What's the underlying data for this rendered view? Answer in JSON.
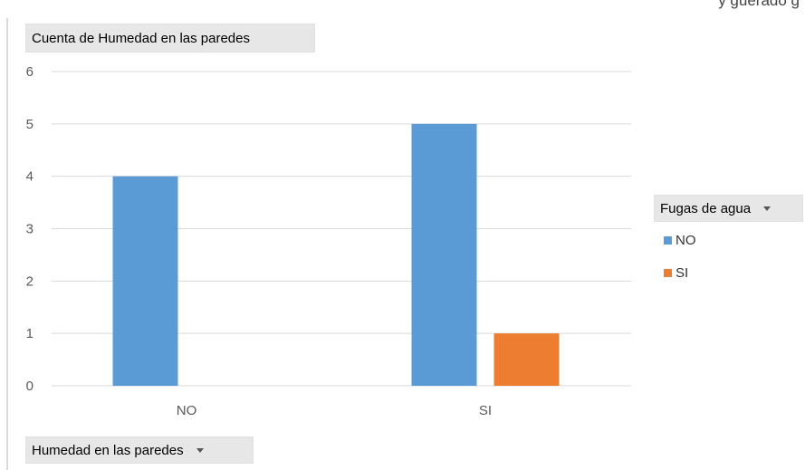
{
  "window": {
    "cut_top_text": "y güerado g"
  },
  "chart_data": {
    "type": "bar",
    "title": "Cuenta de Humedad en las paredes",
    "categories": [
      "NO",
      "SI"
    ],
    "series": [
      {
        "name": "NO",
        "values": [
          4,
          5
        ],
        "color": "#5b9bd5"
      },
      {
        "name": "SI",
        "values": [
          0,
          1
        ],
        "color": "#ed7d31"
      }
    ],
    "yticks": [
      "0",
      "1",
      "2",
      "3",
      "4",
      "5",
      "6"
    ],
    "ylim": [
      0,
      6
    ],
    "grid": true,
    "legend_title": "Fugas de agua",
    "legend_position": "right",
    "axis_field": "Humedad en las paredes"
  }
}
